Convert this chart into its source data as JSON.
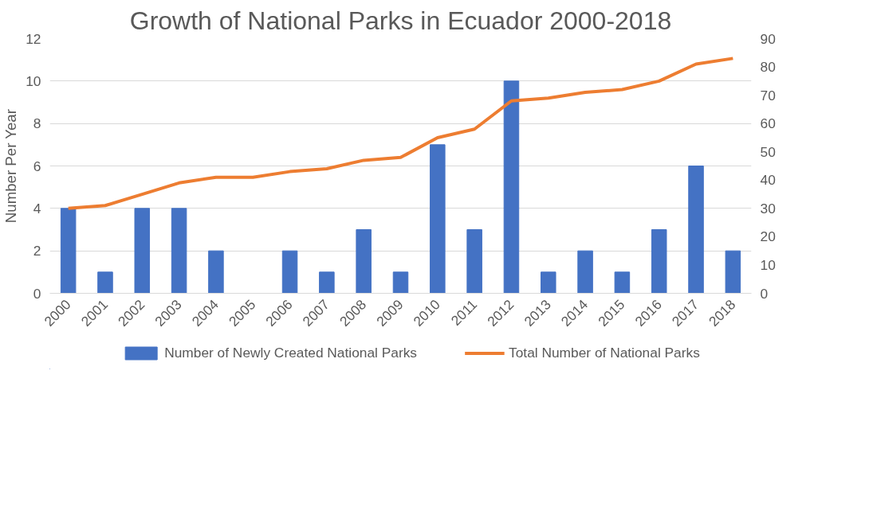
{
  "chart_data": {
    "type": "bar",
    "title": "Growth of National Parks in Ecuador 2000-2018",
    "ylabel": "Number Per Year",
    "categories": [
      "2000",
      "2001",
      "2002",
      "2003",
      "2004",
      "2005",
      "2006",
      "2007",
      "2008",
      "2009",
      "2010",
      "2011",
      "2012",
      "2013",
      "2014",
      "2015",
      "2016",
      "2017",
      "2018"
    ],
    "series": [
      {
        "name": "Number of Newly Created National Parks",
        "color": "#4472c4",
        "values": [
          4,
          1,
          4,
          4,
          2,
          0,
          2,
          1,
          3,
          1,
          7,
          3,
          10,
          1,
          2,
          1,
          3,
          6,
          2
        ]
      },
      {
        "name": "Total Number of National Parks",
        "color": "#ed7d31",
        "type": "line",
        "axis": "y2",
        "values": [
          30,
          31,
          35,
          39,
          41,
          41,
          43,
          44,
          47,
          48,
          55,
          58,
          68,
          69,
          71,
          72,
          75,
          81,
          83
        ]
      }
    ],
    "ylim": [
      0,
      12
    ],
    "yticks": [
      0,
      2,
      4,
      6,
      8,
      10,
      12
    ],
    "y2lim": [
      0,
      90
    ],
    "y2ticks": [
      0,
      10,
      20,
      30,
      40,
      50,
      60,
      70,
      80,
      90
    ],
    "grid": "y",
    "legend": "bottom"
  }
}
